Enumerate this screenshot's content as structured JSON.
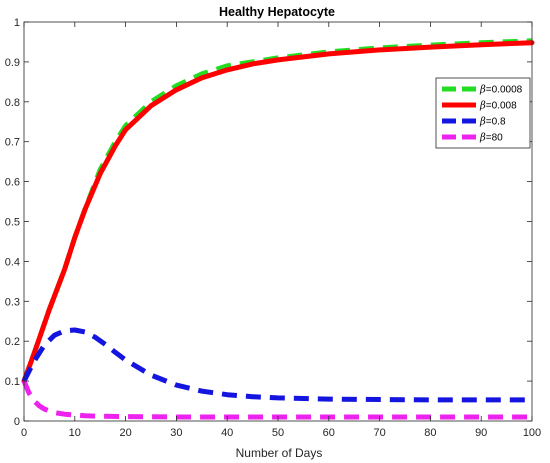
{
  "chart_data": {
    "type": "line",
    "title": "Healthy Hepatocyte",
    "xlabel": "Number of Days",
    "ylabel": "",
    "xlim": [
      0,
      100
    ],
    "ylim": [
      0,
      1
    ],
    "xticks": [
      0,
      10,
      20,
      30,
      40,
      50,
      60,
      70,
      80,
      90,
      100
    ],
    "yticks": [
      0,
      0.1,
      0.2,
      0.3,
      0.4,
      0.5,
      0.6,
      0.7,
      0.8,
      0.9,
      1
    ],
    "x_tick_labels": [
      "0",
      "10",
      "20",
      "30",
      "40",
      "50",
      "60",
      "70",
      "80",
      "90",
      "100"
    ],
    "y_tick_labels": [
      "0",
      "0.1",
      "0.2",
      "0.3",
      "0.4",
      "0.5",
      "0.6",
      "0.7",
      "0.8",
      "0.9",
      "1"
    ],
    "grid": false,
    "legend_position": "top-right",
    "series": [
      {
        "name": "β=0.0008",
        "legend_prefix": "β",
        "legend_value": "=0.0008",
        "color": "#22dd22",
        "style": "dashed",
        "x": [
          0,
          2,
          5,
          8,
          10,
          12,
          15,
          18,
          20,
          25,
          30,
          35,
          40,
          45,
          50,
          60,
          70,
          80,
          90,
          100
        ],
        "y": [
          0.1,
          0.17,
          0.28,
          0.38,
          0.46,
          0.53,
          0.63,
          0.7,
          0.74,
          0.8,
          0.84,
          0.87,
          0.89,
          0.9,
          0.91,
          0.925,
          0.935,
          0.942,
          0.948,
          0.953
        ]
      },
      {
        "name": "β=0.008",
        "legend_prefix": "β",
        "legend_value": "=0.008",
        "color": "#ff0000",
        "style": "solid",
        "x": [
          0,
          2,
          5,
          8,
          10,
          12,
          15,
          18,
          20,
          25,
          30,
          35,
          40,
          45,
          50,
          60,
          70,
          80,
          90,
          100
        ],
        "y": [
          0.1,
          0.17,
          0.28,
          0.38,
          0.46,
          0.53,
          0.62,
          0.69,
          0.73,
          0.79,
          0.83,
          0.86,
          0.88,
          0.895,
          0.905,
          0.92,
          0.93,
          0.937,
          0.943,
          0.948
        ]
      },
      {
        "name": "β=0.8",
        "legend_prefix": "β",
        "legend_value": "=0.8",
        "color": "#1515e0",
        "style": "dashed",
        "x": [
          0,
          2,
          4,
          6,
          8,
          10,
          12,
          14,
          16,
          18,
          20,
          25,
          30,
          35,
          40,
          45,
          50,
          60,
          70,
          80,
          90,
          100
        ],
        "y": [
          0.1,
          0.15,
          0.19,
          0.215,
          0.226,
          0.228,
          0.223,
          0.21,
          0.192,
          0.172,
          0.153,
          0.115,
          0.09,
          0.075,
          0.066,
          0.061,
          0.058,
          0.055,
          0.054,
          0.053,
          0.053,
          0.053
        ]
      },
      {
        "name": "β=80",
        "legend_prefix": "β",
        "legend_value": "=80",
        "color": "#ee22ee",
        "style": "dashed",
        "x": [
          0,
          1,
          2,
          3,
          4,
          5,
          6,
          8,
          10,
          12,
          15,
          20,
          30,
          40,
          50,
          60,
          70,
          80,
          90,
          100
        ],
        "y": [
          0.1,
          0.07,
          0.05,
          0.038,
          0.03,
          0.025,
          0.021,
          0.017,
          0.015,
          0.013,
          0.012,
          0.011,
          0.01,
          0.01,
          0.01,
          0.01,
          0.01,
          0.01,
          0.01,
          0.01
        ]
      }
    ]
  }
}
